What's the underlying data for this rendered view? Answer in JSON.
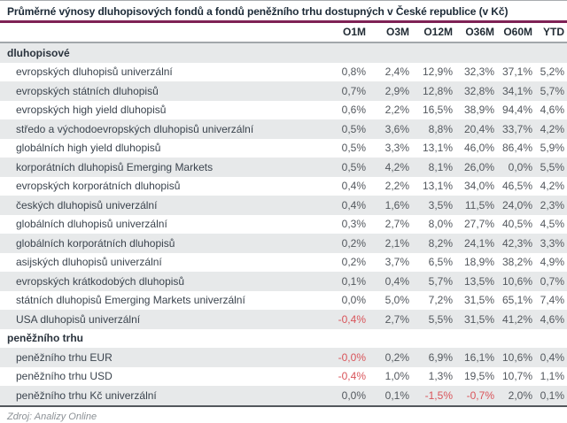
{
  "chart_data": {
    "type": "table",
    "title": "Průměrné výnosy dluhopisových fondů a fondů peněžního trhu dostupných v České republice (v Kč)",
    "columns": [
      "O1M",
      "O3M",
      "O12M",
      "O36M",
      "O60M",
      "YTD"
    ],
    "sections": [
      {
        "header": "dluhopisové",
        "rows": [
          {
            "label": "evropských dluhopisů univerzální",
            "values": [
              "0,8%",
              "2,4%",
              "12,9%",
              "32,3%",
              "37,1%",
              "5,2%"
            ]
          },
          {
            "label": "evropských státních dluhopisů",
            "values": [
              "0,7%",
              "2,9%",
              "12,8%",
              "32,8%",
              "34,1%",
              "5,7%"
            ]
          },
          {
            "label": "evropských high yield dluhopisů",
            "values": [
              "0,6%",
              "2,2%",
              "16,5%",
              "38,9%",
              "94,4%",
              "4,6%"
            ]
          },
          {
            "label": "středo a východoevropských dluhopisů univerzální",
            "values": [
              "0,5%",
              "3,6%",
              "8,8%",
              "20,4%",
              "33,7%",
              "4,2%"
            ]
          },
          {
            "label": "globálních high yield dluhopisů",
            "values": [
              "0,5%",
              "3,3%",
              "13,1%",
              "46,0%",
              "86,4%",
              "5,9%"
            ]
          },
          {
            "label": "korporátních dluhopisů Emerging Markets",
            "values": [
              "0,5%",
              "4,2%",
              "8,1%",
              "26,0%",
              "0,0%",
              "5,5%"
            ]
          },
          {
            "label": "evropských korporátních dluhopisů",
            "values": [
              "0,4%",
              "2,2%",
              "13,1%",
              "34,0%",
              "46,5%",
              "4,2%"
            ]
          },
          {
            "label": "českých dluhopisů univerzální",
            "values": [
              "0,4%",
              "1,6%",
              "3,5%",
              "11,5%",
              "24,0%",
              "2,3%"
            ]
          },
          {
            "label": "globálních dluhopisů univerzální",
            "values": [
              "0,3%",
              "2,7%",
              "8,0%",
              "27,7%",
              "40,5%",
              "4,5%"
            ]
          },
          {
            "label": "globálních korporátních dluhopisů",
            "values": [
              "0,2%",
              "2,1%",
              "8,2%",
              "24,1%",
              "42,3%",
              "3,3%"
            ]
          },
          {
            "label": "asijských dluhopisů univerzální",
            "values": [
              "0,2%",
              "3,7%",
              "6,5%",
              "18,9%",
              "38,2%",
              "4,9%"
            ]
          },
          {
            "label": "evropských krátkodobých dluhopisů",
            "values": [
              "0,1%",
              "0,4%",
              "5,7%",
              "13,5%",
              "10,6%",
              "0,7%"
            ]
          },
          {
            "label": "státních dluhopisů Emerging Markets univerzální",
            "values": [
              "0,0%",
              "5,0%",
              "7,2%",
              "31,5%",
              "65,1%",
              "7,4%"
            ]
          },
          {
            "label": "USA dluhopisů univerzální",
            "values": [
              "-0,4%",
              "2,7%",
              "5,5%",
              "31,5%",
              "41,2%",
              "4,6%"
            ]
          }
        ]
      },
      {
        "header": "peněžního trhu",
        "rows": [
          {
            "label": "peněžního trhu EUR",
            "values": [
              "-0,0%",
              "0,2%",
              "6,9%",
              "16,1%",
              "10,6%",
              "0,4%"
            ]
          },
          {
            "label": "peněžního trhu USD",
            "values": [
              "-0,4%",
              "1,0%",
              "1,3%",
              "19,5%",
              "10,7%",
              "1,1%"
            ]
          },
          {
            "label": "peněžního trhu Kč univerzální",
            "values": [
              "0,0%",
              "0,1%",
              "-1,5%",
              "-0,7%",
              "2,0%",
              "0,1%"
            ]
          }
        ]
      }
    ],
    "source": "Zdroj: Analizy Online",
    "colors": {
      "accent_rule": "#7e2155",
      "negative_value": "#d9545a",
      "row_shade": "#e7e9ea"
    },
    "layout": {
      "row_shading": "alternating, starting shaded at first section header",
      "value_alignment": "right"
    }
  }
}
